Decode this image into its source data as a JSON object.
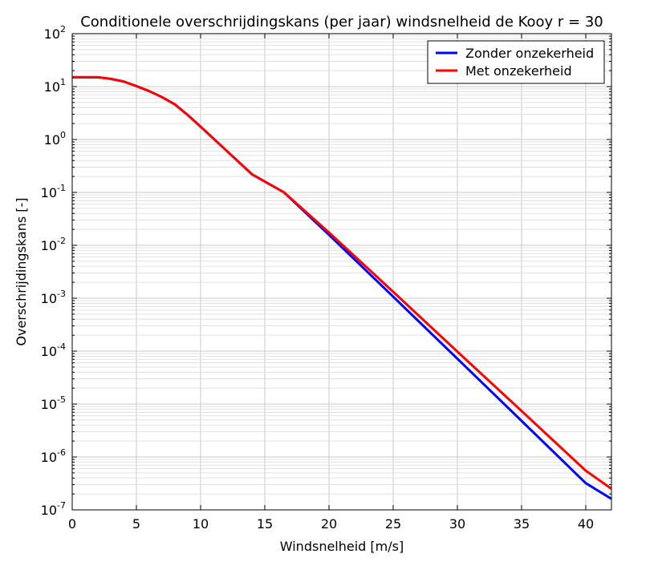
{
  "chart_data": {
    "type": "line",
    "title": "Conditionele overschrijdingskans (per jaar) windsnelheid de Kooy r = 30",
    "xlabel": "Windsnelheid [m/s]",
    "ylabel": "Overschrijdingskans [-]",
    "xlim": [
      0,
      42
    ],
    "ylim_log10": [
      -7,
      2
    ],
    "yscale": "log",
    "grid": true,
    "legend_position": "top-right",
    "x_ticks": [
      "0",
      "5",
      "10",
      "15",
      "20",
      "25",
      "30",
      "35",
      "40"
    ],
    "y_ticks": [
      {
        "base": "10",
        "exp": "2"
      },
      {
        "base": "10",
        "exp": "1"
      },
      {
        "base": "10",
        "exp": "0"
      },
      {
        "base": "10",
        "exp": "-1"
      },
      {
        "base": "10",
        "exp": "-2"
      },
      {
        "base": "10",
        "exp": "-3"
      },
      {
        "base": "10",
        "exp": "-4"
      },
      {
        "base": "10",
        "exp": "-5"
      },
      {
        "base": "10",
        "exp": "-6"
      },
      {
        "base": "10",
        "exp": "-7"
      }
    ],
    "series": [
      {
        "name": "Zonder onzekerheid",
        "color": "#0000ff",
        "x": [
          0,
          2,
          3,
          4,
          5,
          6,
          7,
          8,
          9,
          10,
          12,
          14,
          16.5,
          20,
          25,
          30,
          35,
          40,
          42
        ],
        "y": [
          15,
          15,
          14,
          12.5,
          10.2,
          8.2,
          6.3,
          4.6,
          2.9,
          1.75,
          0.62,
          0.22,
          0.1,
          0.0158,
          0.00107,
          7.2e-05,
          4.8e-06,
          3.2e-07,
          1.62e-07
        ]
      },
      {
        "name": "Met onzekerheid",
        "color": "#ff0000",
        "x": [
          0,
          2,
          3,
          4,
          5,
          6,
          7,
          8,
          9,
          10,
          12,
          14,
          16.5,
          20,
          25,
          30,
          35,
          40,
          42
        ],
        "y": [
          15,
          15,
          14,
          12.5,
          10.2,
          8.2,
          6.3,
          4.6,
          2.9,
          1.75,
          0.62,
          0.22,
          0.1,
          0.0175,
          0.00132,
          9.8e-05,
          7.4e-06,
          5.5e-07,
          2.5e-07
        ]
      }
    ]
  }
}
